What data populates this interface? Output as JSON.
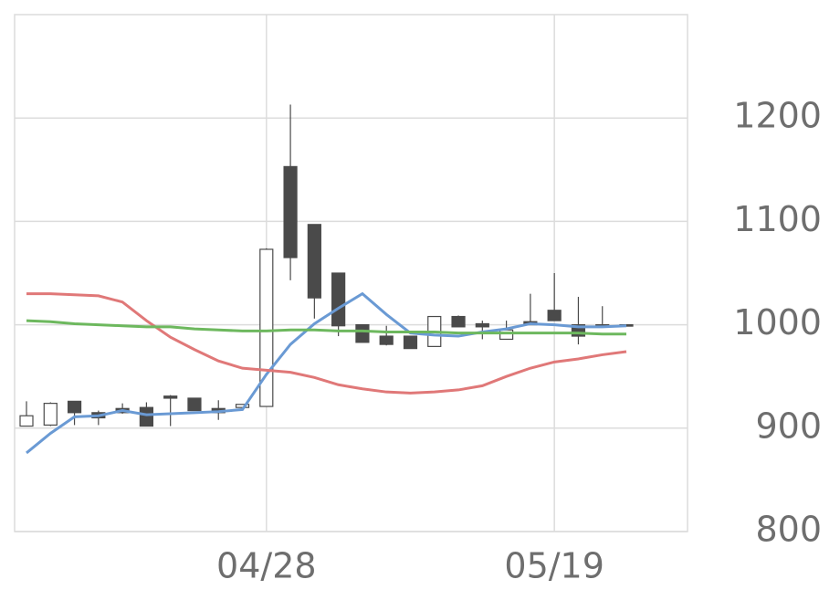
{
  "chart_data": {
    "type": "candlestick",
    "categories": [
      null,
      null,
      null,
      null,
      null,
      null,
      null,
      null,
      null,
      null,
      "04/28",
      null,
      null,
      null,
      null,
      null,
      null,
      null,
      null,
      null,
      null,
      null,
      "05/19",
      null,
      null,
      null
    ],
    "open": [
      902,
      903,
      926,
      915,
      919,
      920,
      931,
      929,
      919,
      920,
      921,
      1153,
      1097,
      1050,
      1000,
      989,
      989,
      979,
      1008,
      1001,
      986,
      1003,
      1014,
      1000,
      1000,
      1000
    ],
    "high": [
      926,
      925,
      926,
      917,
      924,
      925,
      932,
      929,
      927,
      923,
      1074,
      1213,
      1097,
      1050,
      1000,
      999,
      989,
      1008,
      1009,
      1004,
      1004,
      1030,
      1050,
      1027,
      1018,
      1000
    ],
    "low": [
      902,
      902,
      903,
      903,
      914,
      902,
      902,
      917,
      908,
      918,
      921,
      1043,
      1006,
      989,
      983,
      980,
      977,
      979,
      998,
      986,
      986,
      1000,
      1004,
      981,
      999,
      999
    ],
    "close": [
      912,
      924,
      915,
      910,
      915,
      902,
      929,
      917,
      915,
      923,
      1073,
      1065,
      1026,
      999,
      983,
      981,
      977,
      1008,
      998,
      998,
      995,
      1000,
      1004,
      989,
      999,
      999
    ],
    "up_color": "#ffffff",
    "down_color": "#4a4a4a",
    "candle_stroke": "#4a4a4a",
    "series": [
      {
        "color": "#6a9ad4",
        "values": [
          876,
          895,
          911,
          912,
          917,
          913,
          914,
          915,
          916,
          918,
          952,
          981,
          1001,
          1016,
          1030,
          1010,
          992,
          990,
          989,
          993,
          996,
          1001,
          1000,
          998,
          998,
          999
        ]
      },
      {
        "color": "#e07878",
        "values": [
          1030,
          1030,
          1029,
          1028,
          1022,
          1004,
          988,
          976,
          965,
          958,
          956,
          954,
          949,
          942,
          938,
          935,
          934,
          935,
          937,
          941,
          950,
          958,
          964,
          967,
          971,
          974
        ]
      },
      {
        "color": "#6db85e",
        "values": [
          1004,
          1003,
          1001,
          1000,
          999,
          998,
          998,
          996,
          995,
          994,
          994,
          995,
          995,
          994,
          994,
          993,
          993,
          993,
          992,
          992,
          992,
          992,
          992,
          992,
          991,
          991
        ]
      }
    ],
    "ylim": [
      800,
      1300
    ],
    "yticks": [
      800,
      900,
      1000,
      1100,
      1200
    ],
    "grid": true
  }
}
